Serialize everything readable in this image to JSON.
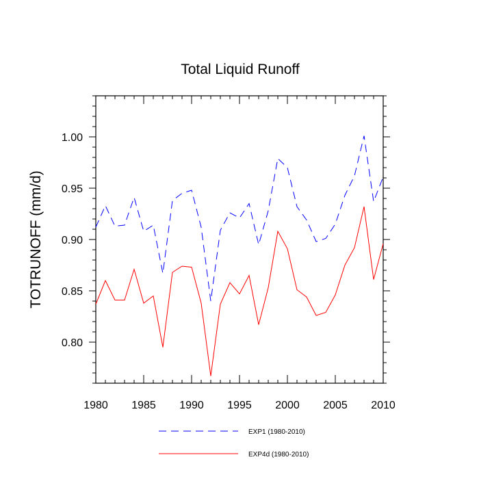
{
  "chart_data": {
    "type": "line",
    "title": "Total Liquid Runoff",
    "xlabel": "",
    "ylabel": "TOTRUNOFF  (mm/d)",
    "xlim": [
      1980,
      2010
    ],
    "ylim": [
      0.76,
      1.04
    ],
    "x_ticks": [
      1980,
      1985,
      1990,
      1995,
      2000,
      2005,
      2010
    ],
    "x_tick_labels": [
      "1980",
      "1985",
      "1990",
      "1995",
      "2000",
      "2005",
      "2010"
    ],
    "y_ticks": [
      0.8,
      0.85,
      0.9,
      0.95,
      1.0
    ],
    "y_tick_labels": [
      "0.80",
      "0.85",
      "0.90",
      "0.95",
      "1.00"
    ],
    "grid": false,
    "legend_position": "bottom",
    "x": [
      1980,
      1981,
      1982,
      1983,
      1984,
      1985,
      1986,
      1987,
      1988,
      1989,
      1990,
      1991,
      1992,
      1993,
      1994,
      1995,
      1996,
      1997,
      1998,
      1999,
      2000,
      2001,
      2002,
      2003,
      2004,
      2005,
      2006,
      2007,
      2008,
      2009,
      2010
    ],
    "series": [
      {
        "name": "EXP1 (1980-2010)",
        "color": "#0000ff",
        "line_style": "dashed",
        "values": [
          0.912,
          0.933,
          0.913,
          0.914,
          0.941,
          0.908,
          0.914,
          0.867,
          0.938,
          0.945,
          0.948,
          0.912,
          0.84,
          0.909,
          0.926,
          0.921,
          0.935,
          0.895,
          0.928,
          0.979,
          0.97,
          0.932,
          0.919,
          0.898,
          0.901,
          0.915,
          0.943,
          0.962,
          1.001,
          0.937,
          0.961
        ]
      },
      {
        "name": "EXP4d (1980-2010)",
        "color": "#ff0000",
        "line_style": "solid",
        "values": [
          0.837,
          0.86,
          0.841,
          0.841,
          0.871,
          0.838,
          0.845,
          0.795,
          0.868,
          0.874,
          0.873,
          0.838,
          0.767,
          0.837,
          0.858,
          0.847,
          0.865,
          0.817,
          0.853,
          0.908,
          0.891,
          0.851,
          0.844,
          0.826,
          0.829,
          0.846,
          0.875,
          0.892,
          0.932,
          0.861,
          0.896
        ]
      }
    ]
  }
}
